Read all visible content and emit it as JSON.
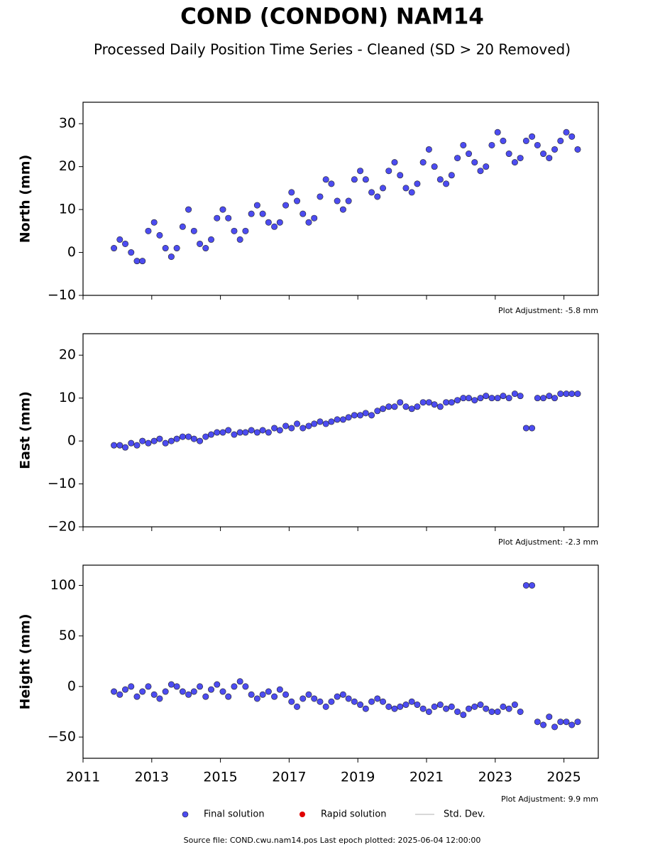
{
  "title": "COND (CONDON) NAM14",
  "subtitle": "Processed Daily Position Time Series - Cleaned (SD > 20 Removed)",
  "legend": [
    {
      "name": "Final solution",
      "color": "#4c4cf0"
    },
    {
      "name": "Rapid solution",
      "color": "#e00000"
    },
    {
      "name": "Std. Dev.",
      "color": "#cccccc"
    }
  ],
  "footer": "Source file: COND.cwu.nam14.pos  Last epoch plotted: 2025-06-04 12:00:00",
  "chart_data": [
    {
      "type": "scatter",
      "ylabel": "North (mm)",
      "note": "Plot Adjustment: -5.8 mm",
      "x": [
        2011.9,
        2012.07,
        2012.23,
        2012.4,
        2012.57,
        2012.73,
        2012.9,
        2013.07,
        2013.23,
        2013.4,
        2013.57,
        2013.73,
        2013.9,
        2014.07,
        2014.23,
        2014.4,
        2014.57,
        2014.73,
        2014.9,
        2015.07,
        2015.23,
        2015.4,
        2015.57,
        2015.73,
        2015.9,
        2016.07,
        2016.23,
        2016.4,
        2016.57,
        2016.73,
        2016.9,
        2017.07,
        2017.23,
        2017.4,
        2017.57,
        2017.73,
        2017.9,
        2018.07,
        2018.23,
        2018.4,
        2018.57,
        2018.73,
        2018.9,
        2019.07,
        2019.23,
        2019.4,
        2019.57,
        2019.73,
        2019.9,
        2020.07,
        2020.23,
        2020.4,
        2020.57,
        2020.73,
        2020.9,
        2021.07,
        2021.23,
        2021.4,
        2021.57,
        2021.73,
        2021.9,
        2022.07,
        2022.23,
        2022.4,
        2022.57,
        2022.73,
        2022.9,
        2023.07,
        2023.23,
        2023.4,
        2023.57,
        2023.73,
        2023.9,
        2024.07,
        2024.23,
        2024.4,
        2024.57,
        2024.73,
        2024.9,
        2025.07,
        2025.23,
        2025.4
      ],
      "series": [
        {
          "color": "#4c4cf0",
          "values": [
            1,
            3,
            2,
            0,
            -2,
            -2,
            5,
            7,
            4,
            1,
            -1,
            1,
            6,
            10,
            5,
            2,
            1,
            3,
            8,
            10,
            8,
            5,
            3,
            5,
            9,
            11,
            9,
            7,
            6,
            7,
            11,
            14,
            12,
            9,
            7,
            8,
            13,
            17,
            16,
            12,
            10,
            12,
            17,
            19,
            17,
            14,
            13,
            15,
            19,
            21,
            18,
            15,
            14,
            16,
            21,
            24,
            20,
            17,
            16,
            18,
            22,
            25,
            23,
            21,
            19,
            20,
            25,
            28,
            26,
            23,
            21,
            22,
            26,
            27,
            25,
            23,
            22,
            24,
            26,
            28,
            27,
            24
          ]
        }
      ],
      "xlim": [
        2011,
        2026
      ],
      "xticks": [
        2011,
        2013,
        2015,
        2017,
        2019,
        2021,
        2023,
        2025
      ],
      "ylim": [
        -10,
        35
      ],
      "yticks": [
        {
          "value": -10,
          "label": "−10"
        },
        0,
        10,
        20,
        30
      ]
    },
    {
      "type": "scatter",
      "ylabel": "East (mm)",
      "note": "Plot Adjustment: -2.3 mm",
      "x": [
        2011.9,
        2012.07,
        2012.23,
        2012.4,
        2012.57,
        2012.73,
        2012.9,
        2013.07,
        2013.23,
        2013.4,
        2013.57,
        2013.73,
        2013.9,
        2014.07,
        2014.23,
        2014.4,
        2014.57,
        2014.73,
        2014.9,
        2015.07,
        2015.23,
        2015.4,
        2015.57,
        2015.73,
        2015.9,
        2016.07,
        2016.23,
        2016.4,
        2016.57,
        2016.73,
        2016.9,
        2017.07,
        2017.23,
        2017.4,
        2017.57,
        2017.73,
        2017.9,
        2018.07,
        2018.23,
        2018.4,
        2018.57,
        2018.73,
        2018.9,
        2019.07,
        2019.23,
        2019.4,
        2019.57,
        2019.73,
        2019.9,
        2020.07,
        2020.23,
        2020.4,
        2020.57,
        2020.73,
        2020.9,
        2021.07,
        2021.23,
        2021.4,
        2021.57,
        2021.73,
        2021.9,
        2022.07,
        2022.23,
        2022.4,
        2022.57,
        2022.73,
        2022.9,
        2023.07,
        2023.23,
        2023.4,
        2023.57,
        2023.73,
        2023.9,
        2024.07,
        2024.23,
        2024.4,
        2024.57,
        2024.73,
        2024.9,
        2025.07,
        2025.23,
        2025.4
      ],
      "series": [
        {
          "color": "#4c4cf0",
          "values": [
            -1,
            -1,
            -1.5,
            -0.5,
            -1,
            0,
            -0.5,
            0,
            0.5,
            -0.5,
            0,
            0.5,
            1,
            1,
            0.5,
            0,
            1,
            1.5,
            2,
            2,
            2.5,
            1.5,
            2,
            2,
            2.5,
            2,
            2.5,
            2,
            3,
            2.5,
            3.5,
            3,
            4,
            3,
            3.5,
            4,
            4.5,
            4,
            4.5,
            5,
            5,
            5.5,
            6,
            6,
            6.5,
            6,
            7,
            7.5,
            8,
            8,
            9,
            8,
            7.5,
            8,
            9,
            9,
            8.5,
            8,
            9,
            9,
            9.5,
            10,
            10,
            9.5,
            10,
            10.5,
            10,
            10,
            10.5,
            10,
            11,
            10.5,
            3,
            3,
            10,
            10,
            10.5,
            10,
            11,
            11,
            11,
            11
          ]
        }
      ],
      "xlim": [
        2011,
        2026
      ],
      "xticks": [
        2011,
        2013,
        2015,
        2017,
        2019,
        2021,
        2023,
        2025
      ],
      "ylim": [
        -20,
        25
      ],
      "yticks": [
        {
          "value": -20,
          "label": "−20"
        },
        {
          "value": -10,
          "label": "−10"
        },
        0,
        10,
        20
      ]
    },
    {
      "type": "scatter",
      "ylabel": "Height (mm)",
      "note": "Plot Adjustment: 9.9 mm",
      "x": [
        2011.9,
        2012.07,
        2012.23,
        2012.4,
        2012.57,
        2012.73,
        2012.9,
        2013.07,
        2013.23,
        2013.4,
        2013.57,
        2013.73,
        2013.9,
        2014.07,
        2014.23,
        2014.4,
        2014.57,
        2014.73,
        2014.9,
        2015.07,
        2015.23,
        2015.4,
        2015.57,
        2015.73,
        2015.9,
        2016.07,
        2016.23,
        2016.4,
        2016.57,
        2016.73,
        2016.9,
        2017.07,
        2017.23,
        2017.4,
        2017.57,
        2017.73,
        2017.9,
        2018.07,
        2018.23,
        2018.4,
        2018.57,
        2018.73,
        2018.9,
        2019.07,
        2019.23,
        2019.4,
        2019.57,
        2019.73,
        2019.9,
        2020.07,
        2020.23,
        2020.4,
        2020.57,
        2020.73,
        2020.9,
        2021.07,
        2021.23,
        2021.4,
        2021.57,
        2021.73,
        2021.9,
        2022.07,
        2022.23,
        2022.4,
        2022.57,
        2022.73,
        2022.9,
        2023.07,
        2023.23,
        2023.4,
        2023.57,
        2023.73,
        2023.9,
        2024.07,
        2024.23,
        2024.4,
        2024.57,
        2024.73,
        2024.9,
        2025.07,
        2025.23,
        2025.4
      ],
      "series": [
        {
          "color": "#4c4cf0",
          "values": [
            -5,
            -8,
            -3,
            0,
            -10,
            -5,
            0,
            -8,
            -12,
            -5,
            2,
            0,
            -5,
            -8,
            -5,
            0,
            -10,
            -3,
            2,
            -5,
            -10,
            0,
            5,
            0,
            -8,
            -12,
            -8,
            -5,
            -10,
            -3,
            -8,
            -15,
            -20,
            -12,
            -8,
            -12,
            -15,
            -20,
            -15,
            -10,
            -8,
            -12,
            -15,
            -18,
            -22,
            -15,
            -12,
            -15,
            -20,
            -22,
            -20,
            -18,
            -15,
            -18,
            -22,
            -25,
            -20,
            -18,
            -22,
            -20,
            -25,
            -28,
            -22,
            -20,
            -18,
            -22,
            -25,
            -25,
            -20,
            -22,
            -18,
            -25,
            100,
            100,
            -35,
            -38,
            -30,
            -40,
            -35,
            -35,
            -38,
            -35
          ]
        }
      ],
      "xlim": [
        2011,
        2026
      ],
      "xticks": [
        2011,
        2013,
        2015,
        2017,
        2019,
        2021,
        2023,
        2025
      ],
      "ylim": [
        -71,
        120
      ],
      "yticks": [
        {
          "value": -50,
          "label": "−50"
        },
        0,
        50,
        100
      ]
    }
  ]
}
